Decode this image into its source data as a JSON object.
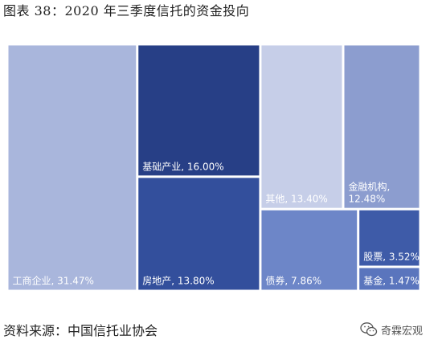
{
  "title": "图表 38：2020 年三季度信托的资金投向",
  "source": "资料来源：中国信托业协会",
  "watermark": {
    "text": "奇霖宏观",
    "icon": "wechat-icon"
  },
  "chart_data": {
    "type": "treemap",
    "unit": "%",
    "items": [
      {
        "name": "工商企业",
        "value": 31.47,
        "label": "工商企业, 31.47%",
        "color": "#a9b6dc"
      },
      {
        "name": "基础产业",
        "value": 16.0,
        "label": "基础产业, 16.00%",
        "color": "#273f86"
      },
      {
        "name": "房地产",
        "value": 13.8,
        "label": "房地产, 13.80%",
        "color": "#334f9c"
      },
      {
        "name": "其他",
        "value": 13.4,
        "label": "其他, 13.40%",
        "color": "#c6cee8"
      },
      {
        "name": "金融机构",
        "value": 12.48,
        "label": "金融机构,\n12.48%",
        "color": "#8c9dcf"
      },
      {
        "name": "债券",
        "value": 7.86,
        "label": "债券, 7.86%",
        "color": "#6d86c8"
      },
      {
        "name": "股票",
        "value": 3.52,
        "label": "股票, 3.52%",
        "color": "#3e5ba8"
      },
      {
        "name": "基金",
        "value": 1.47,
        "label": "基金, 1.47%",
        "color": "#5a75bd"
      }
    ]
  }
}
